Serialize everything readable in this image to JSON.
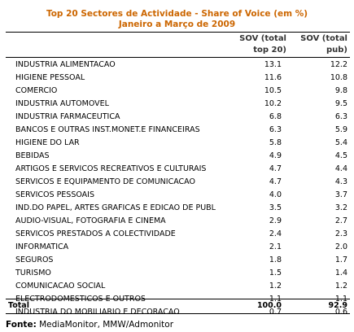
{
  "title_line1": "Top 20 Sectores de Actividade - Share of Voice (em %)",
  "title_line2": "Janeiro a Março de 2009",
  "colors": {
    "title": "#cc6600",
    "rule": "#000000"
  },
  "chart_data": {
    "type": "table",
    "columns": [
      "",
      "SOV (total top 20)",
      "SOV (total pub)"
    ],
    "header": {
      "col1_line1": "SOV (total",
      "col1_line2": "top 20)",
      "col2_line1": "SOV (total",
      "col2_line2": "pub)"
    },
    "rows": [
      {
        "sector": "INDUSTRIA ALIMENTACAO",
        "sov_top20": "13.1",
        "sov_pub": "12.2"
      },
      {
        "sector": "HIGIENE PESSOAL",
        "sov_top20": "11.6",
        "sov_pub": "10.8"
      },
      {
        "sector": "COMERCIO",
        "sov_top20": "10.5",
        "sov_pub": "9.8"
      },
      {
        "sector": "INDUSTRIA AUTOMOVEL",
        "sov_top20": "10.2",
        "sov_pub": "9.5"
      },
      {
        "sector": "INDUSTRIA FARMACEUTICA",
        "sov_top20": "6.8",
        "sov_pub": "6.3"
      },
      {
        "sector": "BANCOS E OUTRAS INST.MONET.E FINANCEIRAS",
        "sov_top20": "6.3",
        "sov_pub": "5.9"
      },
      {
        "sector": "HIGIENE DO LAR",
        "sov_top20": "5.8",
        "sov_pub": "5.4"
      },
      {
        "sector": "BEBIDAS",
        "sov_top20": "4.9",
        "sov_pub": "4.5"
      },
      {
        "sector": "ARTIGOS E SERVICOS RECREATIVOS E CULTURAIS",
        "sov_top20": "4.7",
        "sov_pub": "4.4"
      },
      {
        "sector": "SERVICOS E EQUIPAMENTO DE COMUNICACAO",
        "sov_top20": "4.7",
        "sov_pub": "4.3"
      },
      {
        "sector": "SERVICOS PESSOAIS",
        "sov_top20": "4.0",
        "sov_pub": "3.7"
      },
      {
        "sector": "IND.DO PAPEL, ARTES GRAFICAS E EDICAO DE PUBL",
        "sov_top20": "3.5",
        "sov_pub": "3.2"
      },
      {
        "sector": "AUDIO-VISUAL, FOTOGRAFIA E CINEMA",
        "sov_top20": "2.9",
        "sov_pub": "2.7"
      },
      {
        "sector": "SERVICOS PRESTADOS A COLECTIVIDADE",
        "sov_top20": "2.4",
        "sov_pub": "2.3"
      },
      {
        "sector": "INFORMATICA",
        "sov_top20": "2.1",
        "sov_pub": "2.0"
      },
      {
        "sector": "SEGUROS",
        "sov_top20": "1.8",
        "sov_pub": "1.7"
      },
      {
        "sector": "TURISMO",
        "sov_top20": "1.5",
        "sov_pub": "1.4"
      },
      {
        "sector": "COMUNICACAO SOCIAL",
        "sov_top20": "1.2",
        "sov_pub": "1.2"
      },
      {
        "sector": "ELECTRODOMESTICOS E OUTROS",
        "sov_top20": "1.1",
        "sov_pub": "1.1"
      },
      {
        "sector": "INDUSTRIA DO MOBILIARIO E DECORACAO",
        "sov_top20": "0.7",
        "sov_pub": "0.6"
      }
    ],
    "total": {
      "label": "Total",
      "sov_top20": "100.0",
      "sov_pub": "92.9"
    }
  },
  "source": {
    "label": "Fonte:",
    "text": " MediaMonitor, MMW/Admonitor"
  }
}
